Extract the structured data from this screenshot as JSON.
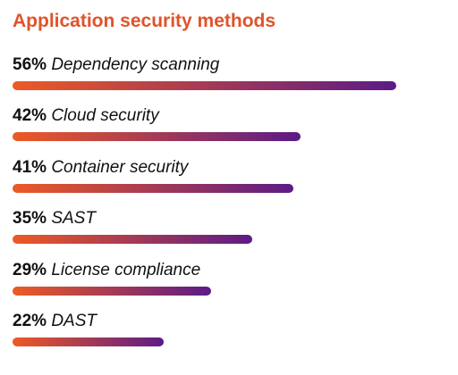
{
  "colors": {
    "title": "#e0532b",
    "bar_start": "#ed5a24",
    "bar_end": "#5c1b86"
  },
  "chart_data": {
    "type": "bar",
    "orientation": "horizontal",
    "title": "Application security methods",
    "value_suffix": "%",
    "xlim": [
      0,
      60
    ],
    "grid": false,
    "categories": [
      "Dependency scanning",
      "Cloud security",
      "Container security",
      "SAST",
      "License compliance",
      "DAST"
    ],
    "values": [
      56,
      42,
      41,
      35,
      29,
      22
    ],
    "labels": [
      "56%",
      "42%",
      "41%",
      "35%",
      "29%",
      "22%"
    ]
  }
}
